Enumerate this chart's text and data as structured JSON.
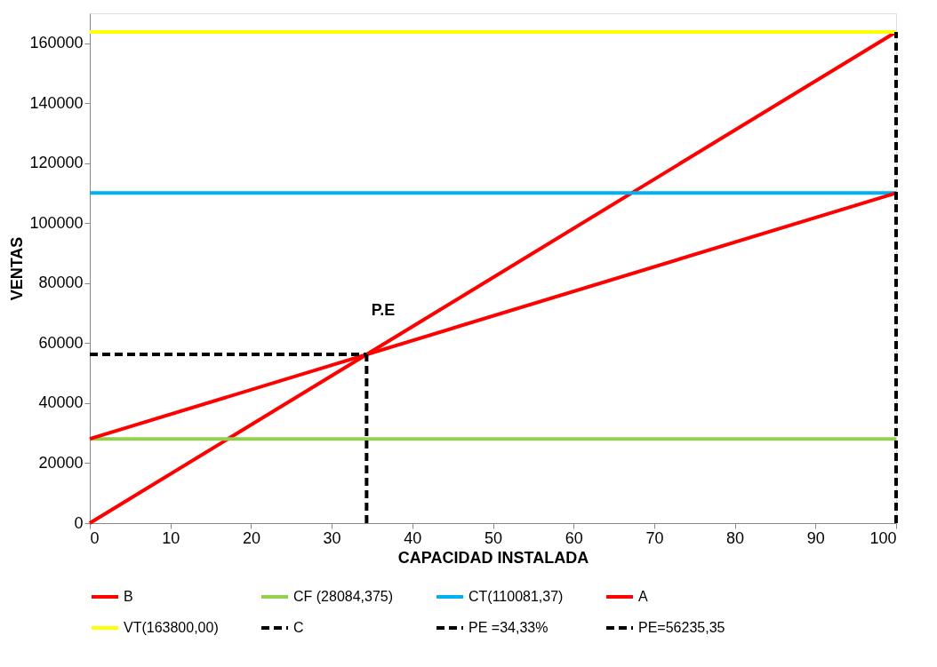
{
  "chart_data": {
    "type": "line",
    "xlabel": "CAPACIDAD INSTALADA",
    "ylabel": "VENTAS",
    "xlim": [
      0,
      100
    ],
    "xticks": [
      0,
      10,
      20,
      30,
      40,
      50,
      60,
      70,
      80,
      90,
      100
    ],
    "ylim": [
      0,
      170000
    ],
    "yticks": [
      0,
      20000,
      40000,
      60000,
      80000,
      100000,
      120000,
      140000,
      160000
    ],
    "grid": false,
    "legend": "bottom",
    "annotations": [
      "P.E"
    ],
    "series": [
      {
        "name": "B",
        "color": "#ff0000",
        "line_style": "solid",
        "x": [
          0,
          100
        ],
        "values": [
          0,
          163800
        ]
      },
      {
        "name": "CF (28084,375)",
        "color": "#92d050",
        "line_style": "solid",
        "x": [
          0,
          100
        ],
        "values": [
          28084.375,
          28084.375
        ]
      },
      {
        "name": "CT(110081,37)",
        "color": "#00b0f0",
        "line_style": "solid",
        "x": [
          0,
          100
        ],
        "values": [
          110081.37,
          110081.37
        ]
      },
      {
        "name": "A",
        "color": "#ff0000",
        "line_style": "solid",
        "x": [
          0,
          100
        ],
        "values": [
          28084.375,
          110081.37
        ]
      },
      {
        "name": "VT(163800,00)",
        "color": "#ffff00",
        "line_style": "solid",
        "x": [
          0,
          100
        ],
        "values": [
          163800,
          163800
        ]
      },
      {
        "name": "C",
        "color": "#000000",
        "line_style": "dashed",
        "x": [
          100,
          100
        ],
        "values": [
          0,
          163800
        ]
      },
      {
        "name": "PE =34,33%",
        "color": "#000000",
        "line_style": "dashed",
        "x": [
          34.33,
          34.33
        ],
        "values": [
          0,
          56235.35
        ]
      },
      {
        "name": "PE=56235,35",
        "color": "#000000",
        "line_style": "dashed",
        "x": [
          0,
          34.33
        ],
        "values": [
          56235.35,
          56235.35
        ]
      }
    ]
  }
}
